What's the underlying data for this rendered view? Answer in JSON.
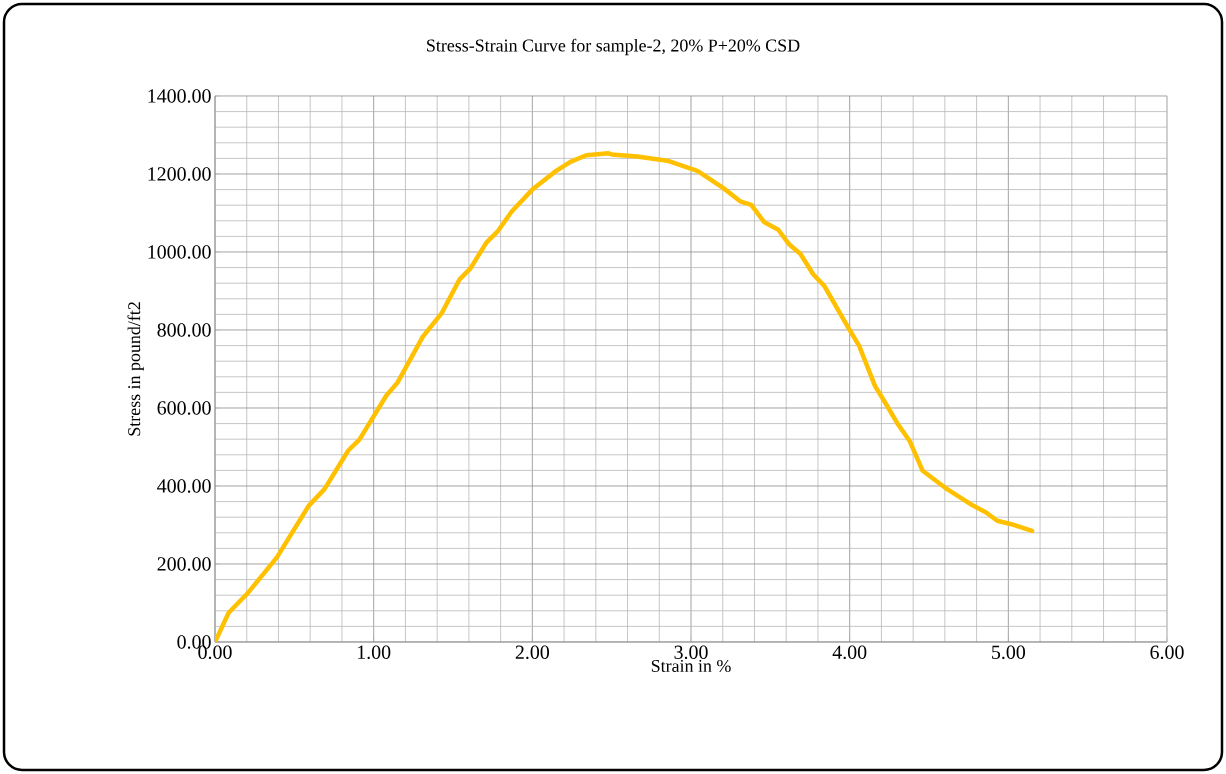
{
  "chart_data": {
    "type": "line",
    "title": "Stress-Strain Curve for sample-2, 20% P+20% CSD",
    "xlabel": "Strain in %",
    "ylabel": "Stress in pound/ft2",
    "x": [
      0,
      0.086,
      0.21,
      0.39,
      0.59,
      0.69,
      0.84,
      0.91,
      1.08,
      1.15,
      1.31,
      1.43,
      1.54,
      1.61,
      1.71,
      1.78,
      1.87,
      2.0,
      2.15,
      2.24,
      2.34,
      2.48,
      2.5,
      2.66,
      2.85,
      3.04,
      3.2,
      3.31,
      3.38,
      3.46,
      3.55,
      3.62,
      3.69,
      3.77,
      3.84,
      3.99,
      4.06,
      4.16,
      4.21,
      4.3,
      4.38,
      4.46,
      4.6,
      4.76,
      4.86,
      4.93,
      5.02,
      5.15
    ],
    "series": [
      {
        "color": "#ffc000",
        "values": [
          0,
          75,
          127,
          217,
          349,
          392,
          491,
          519,
          632,
          665,
          783,
          844,
          929,
          958,
          1024,
          1052,
          1104,
          1160,
          1208,
          1231,
          1248,
          1253,
          1250,
          1245,
          1234,
          1208,
          1165,
          1130,
          1121,
          1077,
          1057,
          1019,
          995,
          943,
          913,
          807,
          759,
          656,
          623,
          561,
          514,
          439,
          396,
          354,
          332,
          311,
          302,
          285
        ]
      }
    ],
    "xlim": [
      0,
      6
    ],
    "ylim": [
      0,
      1400
    ],
    "xticks": [
      {
        "value": 0,
        "label": "0.00"
      },
      {
        "value": 1,
        "label": "1.00"
      },
      {
        "value": 2,
        "label": "2.00"
      },
      {
        "value": 3,
        "label": "3.00"
      },
      {
        "value": 4,
        "label": "4.00"
      },
      {
        "value": 5,
        "label": "5.00"
      },
      {
        "value": 6,
        "label": "6.00"
      }
    ],
    "yticks": [
      {
        "value": 0,
        "label": "0.00"
      },
      {
        "value": 200,
        "label": "200.00"
      },
      {
        "value": 400,
        "label": "400.00"
      },
      {
        "value": 600,
        "label": "600.00"
      },
      {
        "value": 800,
        "label": "800.00"
      },
      {
        "value": 1000,
        "label": "1000.00"
      },
      {
        "value": 1200,
        "label": "1200.00"
      },
      {
        "value": 1400,
        "label": "1400.00"
      }
    ],
    "grid": true,
    "marker": "none",
    "line_style": "solid"
  }
}
